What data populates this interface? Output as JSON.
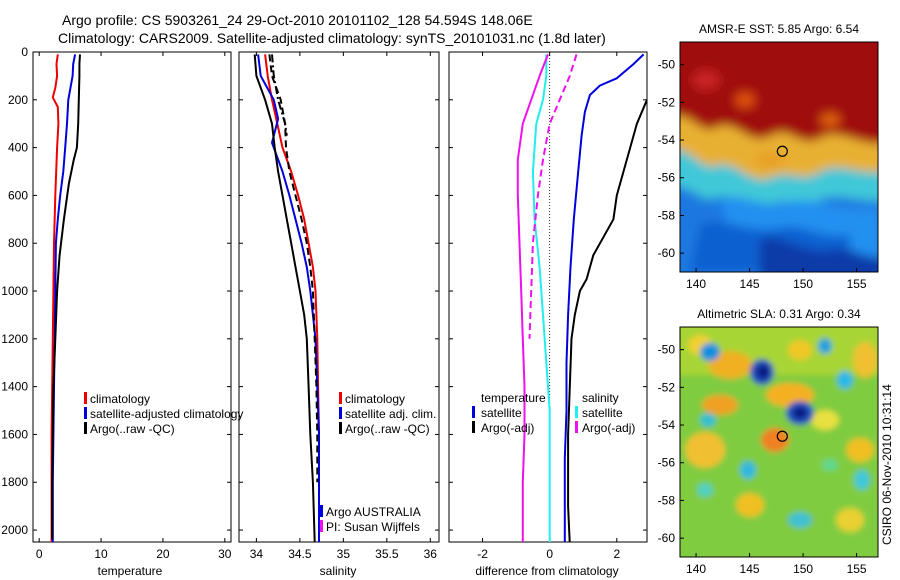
{
  "header": {
    "line1": "Argo profile: CS 5903261_24 29-Oct-2010 20101102_128 54.594S 148.06E",
    "line2": "Climatology: CARS2009. Satellite-adjusted climatology: synTS_20101031.nc (1.8d later)"
  },
  "stamp": "CSIRO 06-Nov-2010 10:31:14",
  "colors": {
    "red": "#ee0000",
    "blue": "#0000dd",
    "black": "#000000",
    "cyan": "#22eeee",
    "magenta": "#ee11ee"
  },
  "chart_data": [
    {
      "type": "line",
      "id": "temperature",
      "xlabel": "temperature",
      "xlim": [
        -1,
        31
      ],
      "ylim": [
        2050,
        0
      ],
      "xticks": [
        0,
        10,
        20,
        30
      ],
      "yticks": [
        0,
        200,
        400,
        600,
        800,
        1000,
        1200,
        1400,
        1600,
        1800,
        2000
      ],
      "legend": [
        {
          "label": "climatology",
          "color": "red"
        },
        {
          "label": "satellite-adjusted climatology",
          "color": "blue"
        },
        {
          "label": "Argo(..raw -QC)",
          "color": "black"
        }
      ],
      "series": [
        {
          "name": "climatology",
          "color": "red",
          "width": 2,
          "dash": false,
          "x": [
            3.0,
            2.8,
            2.9,
            2.6,
            2.2,
            3.0,
            3.1,
            2.9,
            2.6,
            2.4,
            2.3,
            2.2,
            2.1,
            2.0,
            2.0,
            2.0,
            2.0
          ],
          "y": [
            10,
            50,
            100,
            150,
            190,
            230,
            300,
            400,
            600,
            800,
            1000,
            1200,
            1400,
            1600,
            1800,
            2000,
            2060
          ]
        },
        {
          "name": "satellite-adjusted climatology",
          "color": "blue",
          "width": 2,
          "dash": false,
          "x": [
            5.8,
            5.5,
            5.4,
            4.7,
            4.5,
            4.2,
            3.9,
            3.4,
            3.0,
            2.7,
            2.6,
            2.5,
            2.4,
            2.3,
            2.2,
            2.2
          ],
          "y": [
            10,
            50,
            100,
            200,
            300,
            400,
            500,
            600,
            700,
            800,
            1000,
            1200,
            1400,
            1600,
            1800,
            2060
          ]
        },
        {
          "name": "Argo(..raw -QC)",
          "color": "black",
          "width": 2,
          "dash": false,
          "x": [
            6.6,
            6.5,
            6.5,
            6.4,
            6.3,
            6.1,
            5.6,
            4.8,
            4.0,
            3.3,
            2.9,
            2.6,
            2.3,
            2.2,
            2.1,
            2.1
          ],
          "y": [
            10,
            50,
            100,
            200,
            300,
            400,
            450,
            550,
            700,
            850,
            1000,
            1200,
            1400,
            1600,
            1800,
            2040
          ]
        }
      ]
    },
    {
      "type": "line",
      "id": "salinity",
      "xlabel": "salinity",
      "xlim": [
        33.8,
        36.1
      ],
      "ylim": [
        2050,
        0
      ],
      "xticks": [
        34,
        34.5,
        35,
        35.5,
        36
      ],
      "tick_labels": [
        "34",
        "34.5",
        "35",
        "35.5",
        "36"
      ],
      "legend": [
        {
          "label": "climatology",
          "color": "red"
        },
        {
          "label": "satellite adj. clim.",
          "color": "blue"
        },
        {
          "label": "Argo(..raw -QC)",
          "color": "black"
        }
      ],
      "annotation": [
        "Argo AUSTRALIA",
        "PI: Susan Wijffels"
      ],
      "series": [
        {
          "name": "climatology",
          "color": "red",
          "width": 2,
          "dash": false,
          "x": [
            34.1,
            34.13,
            34.18,
            34.24,
            34.3,
            34.4,
            34.48,
            34.55,
            34.6,
            34.65,
            34.68,
            34.7,
            34.71,
            34.72,
            34.72,
            34.72
          ],
          "y": [
            10,
            100,
            200,
            300,
            400,
            500,
            600,
            700,
            800,
            900,
            1000,
            1200,
            1400,
            1600,
            1800,
            2060
          ]
        },
        {
          "name": "satellite adj. clim.",
          "color": "blue",
          "width": 2,
          "dash": false,
          "x": [
            34.02,
            34.05,
            34.2,
            34.25,
            34.18,
            34.3,
            34.38,
            34.45,
            34.52,
            34.58,
            34.62,
            34.65,
            34.68,
            34.7,
            34.72,
            34.72,
            34.72
          ],
          "y": [
            10,
            100,
            200,
            280,
            380,
            500,
            600,
            700,
            800,
            900,
            1000,
            1100,
            1200,
            1400,
            1600,
            1800,
            2060
          ]
        },
        {
          "name": "Argo(..raw -QC)",
          "color": "black",
          "width": 2,
          "dash": false,
          "x": [
            33.98,
            34.0,
            34.1,
            34.18,
            34.21,
            34.25,
            34.3,
            34.35,
            34.4,
            34.45,
            34.5,
            34.55,
            34.58,
            34.6,
            34.62,
            34.65,
            34.67
          ],
          "y": [
            10,
            100,
            200,
            300,
            400,
            500,
            600,
            700,
            800,
            900,
            1000,
            1100,
            1200,
            1400,
            1600,
            1800,
            2050
          ]
        },
        {
          "name": "satellite adj. (dashed)",
          "color": "black",
          "width": 2,
          "dash": true,
          "x": [
            34.15,
            34.18,
            34.28,
            34.33,
            34.34,
            34.38,
            34.45,
            34.52,
            34.58,
            34.62,
            34.65,
            34.67,
            34.69,
            34.7,
            34.7
          ],
          "y": [
            10,
            100,
            200,
            300,
            400,
            500,
            600,
            700,
            800,
            900,
            1000,
            1200,
            1400,
            1600,
            1800
          ]
        },
        {
          "name": "climatology (dash-dot)",
          "color": "black",
          "width": 2,
          "dash": "dashdot",
          "x": [
            34.18,
            34.2,
            34.25,
            34.33,
            34.35
          ],
          "y": [
            10,
            100,
            200,
            300,
            350
          ]
        }
      ]
    },
    {
      "type": "line",
      "id": "difference",
      "xlabel": "difference from climatology",
      "xlim": [
        -3.0,
        2.9
      ],
      "ylim": [
        2050,
        0
      ],
      "xticks": [
        -2,
        0,
        2
      ],
      "zero_line": true,
      "legend_left": {
        "title": "temperature",
        "items": [
          {
            "label": "satellite",
            "color": "blue"
          },
          {
            "label": "Argo(-adj)",
            "color": "black"
          }
        ]
      },
      "legend_right": {
        "title": "salinity",
        "items": [
          {
            "label": "satellite",
            "color": "cyan"
          },
          {
            "label": "Argo(-adj)",
            "color": "magenta"
          }
        ]
      },
      "series": [
        {
          "name": "temperature satellite",
          "color": "blue",
          "width": 2,
          "dash": false,
          "x": [
            2.8,
            2.5,
            2.0,
            1.5,
            1.2,
            1.05,
            0.95,
            0.85,
            0.72,
            0.62,
            0.55,
            0.5,
            0.5,
            0.45,
            0.45,
            0.45
          ],
          "y": [
            10,
            50,
            110,
            140,
            180,
            250,
            350,
            500,
            700,
            900,
            1100,
            1300,
            1500,
            1700,
            1900,
            2060
          ]
        },
        {
          "name": "temperature Argo(-adj)",
          "color": "black",
          "width": 2,
          "dash": false,
          "x": [
            2.9,
            2.6,
            2.4,
            2.2,
            2.0,
            1.9,
            1.7,
            1.5,
            1.3,
            1.1,
            0.9,
            0.75,
            0.65,
            0.6,
            0.55,
            0.55,
            0.55,
            0.6
          ],
          "y": [
            200,
            300,
            400,
            500,
            600,
            700,
            750,
            800,
            850,
            950,
            1000,
            1100,
            1200,
            1400,
            1600,
            1800,
            1900,
            2060
          ]
        },
        {
          "name": "salinity satellite",
          "color": "cyan",
          "width": 2,
          "dash": false,
          "x": [
            -0.1,
            -0.1,
            -0.2,
            -0.4,
            -0.5,
            -0.45,
            -0.3,
            -0.2,
            -0.1,
            0.0,
            0.0,
            0.0
          ],
          "y": [
            10,
            100,
            200,
            300,
            500,
            700,
            900,
            1100,
            1300,
            1500,
            1800,
            2060
          ]
        },
        {
          "name": "salinity Argo(-adj)",
          "color": "magenta",
          "width": 2,
          "dash": false,
          "x": [
            -0.05,
            -0.3,
            -0.55,
            -0.8,
            -0.95,
            -0.95,
            -0.9,
            -0.85,
            -0.8,
            -0.75,
            -0.75,
            -0.8,
            -0.8
          ],
          "y": [
            10,
            100,
            200,
            300,
            450,
            600,
            800,
            1000,
            1200,
            1400,
            1600,
            1800,
            2050
          ]
        },
        {
          "name": "salinity Argo(-adj) clim",
          "color": "magenta",
          "width": 2,
          "dash": true,
          "x": [
            0.8,
            0.6,
            0.3,
            0.0,
            -0.2,
            -0.35,
            -0.5,
            -0.55,
            -0.6
          ],
          "y": [
            10,
            100,
            200,
            300,
            450,
            600,
            800,
            1000,
            1200
          ]
        }
      ]
    }
  ],
  "maps": [
    {
      "id": "sst-map",
      "title": "AMSR-E SST: 5.85  Argo: 6.54",
      "xticks": [
        140,
        145,
        150,
        155
      ],
      "yticks": [
        -50,
        -52,
        -54,
        -56,
        -58,
        -60
      ],
      "xlim": [
        138.5,
        157
      ],
      "ylim": [
        -61,
        -48.8
      ],
      "marker": {
        "lon": 148.06,
        "lat": -54.594
      }
    },
    {
      "id": "sla-map",
      "title": "Altimetric SLA: 0.31  Argo: 0.34",
      "xticks": [
        140,
        145,
        150,
        155
      ],
      "yticks": [
        -50,
        -52,
        -54,
        -56,
        -58,
        -60
      ],
      "xlim": [
        138.5,
        157
      ],
      "ylim": [
        -61,
        -48.8
      ],
      "marker": {
        "lon": 148.06,
        "lat": -54.594
      }
    }
  ]
}
